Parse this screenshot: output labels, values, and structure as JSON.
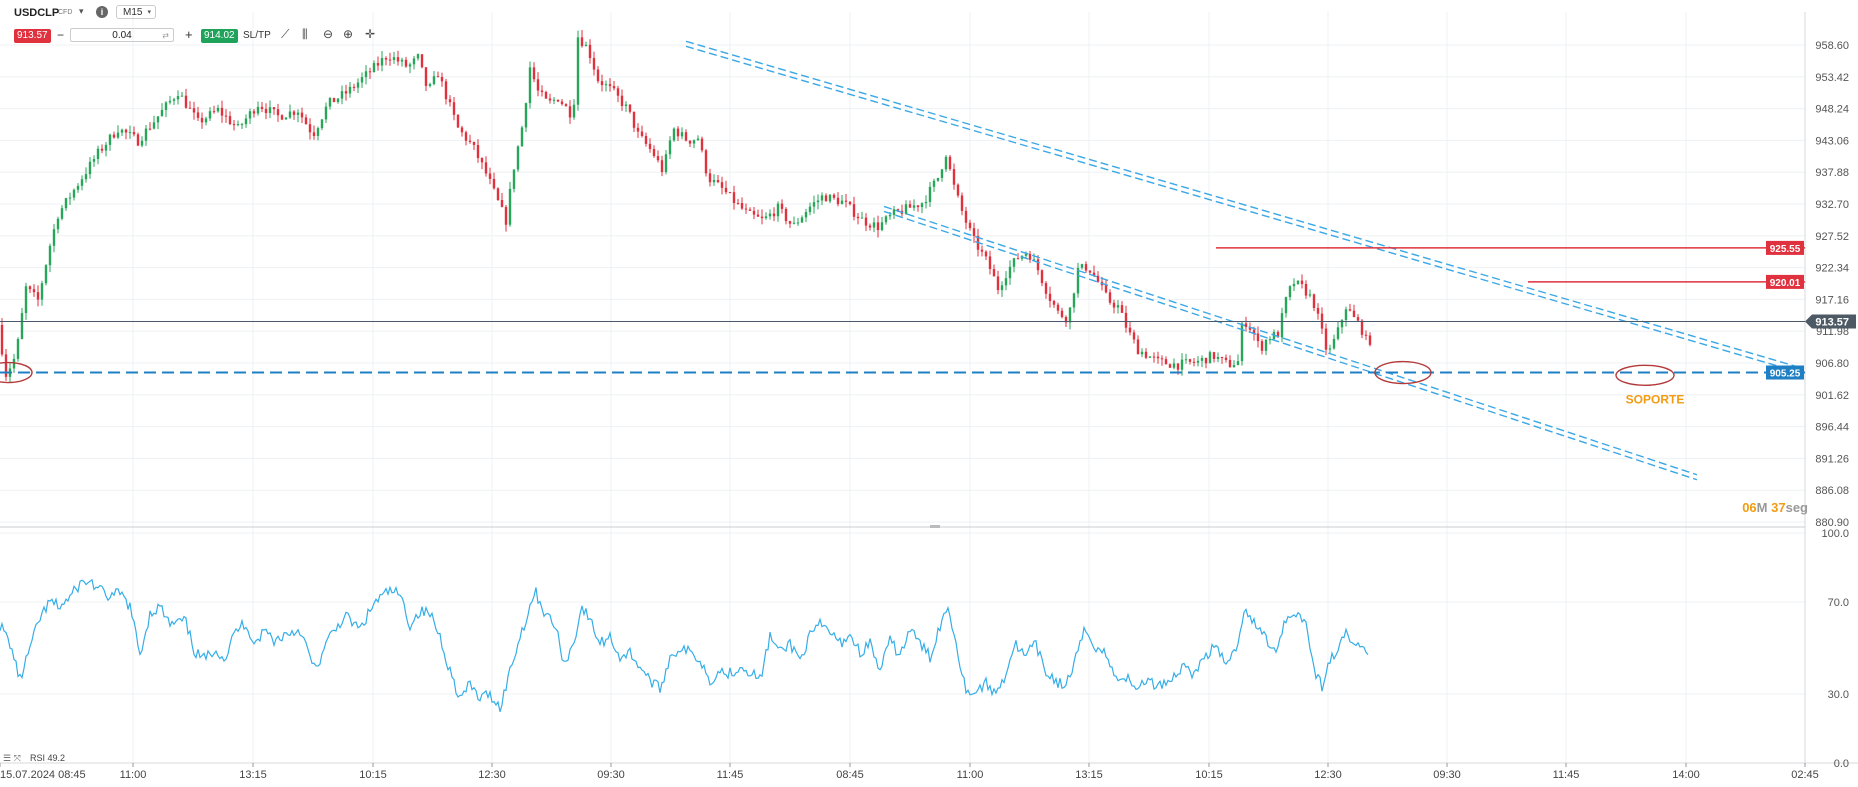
{
  "toolbar": {
    "symbol": "USDCLP",
    "symbol_tag": "CFD",
    "info_icon": "info-icon",
    "timeframe": "M15",
    "sell_price": "913.57",
    "quantity": "0.04",
    "buy_price": "914.02",
    "sltp_label": "SL/TP",
    "tools": [
      "line-chart-icon",
      "candles-icon",
      "zoom-out-icon",
      "zoom-in-icon",
      "crosshair-icon"
    ]
  },
  "colors": {
    "bull": "#27a65a",
    "bear": "#e0313e",
    "channel": "#3aa7e6",
    "support": "#1f7fc4",
    "resistance": "#e0313e",
    "current_line": "#4a5a6a",
    "rsi_line": "#35aee8",
    "annotation": "#f39c12",
    "circle": "#b33a3a"
  },
  "chart_data": [
    {
      "type": "candlestick",
      "symbol": "USDCLP",
      "timeframe": "M15",
      "ylim": [
        880.9,
        961.0
      ],
      "y_ticks": [
        "958.60",
        "953.42",
        "948.24",
        "943.06",
        "937.88",
        "932.70",
        "927.52",
        "922.34",
        "917.16",
        "911.98",
        "906.80",
        "901.62",
        "896.44",
        "891.26",
        "886.08",
        "880.90"
      ],
      "x_ticks": [
        "15.07.2024 08:45",
        "11:00",
        "13:15",
        "10:15",
        "12:30",
        "09:30",
        "11:45",
        "08:45",
        "11:00",
        "13:15",
        "10:15",
        "12:30",
        "09:30",
        "11:45",
        "14:00",
        "02:45"
      ],
      "current_price": "913.57",
      "price_levels": [
        {
          "label": "925.55",
          "value": 925.55,
          "kind": "resistance"
        },
        {
          "label": "920.01",
          "value": 920.01,
          "kind": "resistance"
        },
        {
          "label": "905.25",
          "value": 905.25,
          "kind": "support"
        }
      ],
      "annotation": "SOPORTE",
      "countdown": {
        "minutes": "06",
        "minutes_unit": "M",
        "seconds": "37",
        "seconds_unit": "seg"
      },
      "price_anchors": [
        [
          0,
          913.0
        ],
        [
          8,
          905.0
        ],
        [
          18,
          908.0
        ],
        [
          28,
          919.0
        ],
        [
          40,
          917.0
        ],
        [
          52,
          926.0
        ],
        [
          60,
          931.0
        ],
        [
          80,
          936.0
        ],
        [
          100,
          941.0
        ],
        [
          120,
          945.0
        ],
        [
          140,
          943.0
        ],
        [
          160,
          947.0
        ],
        [
          180,
          951.0
        ],
        [
          200,
          946.0
        ],
        [
          220,
          948.0
        ],
        [
          240,
          945.0
        ],
        [
          260,
          949.0
        ],
        [
          280,
          947.0
        ],
        [
          300,
          948.0
        ],
        [
          315,
          944.0
        ],
        [
          330,
          949.0
        ],
        [
          350,
          951.0
        ],
        [
          370,
          954.0
        ],
        [
          390,
          957.0
        ],
        [
          410,
          955.0
        ],
        [
          420,
          956.5
        ],
        [
          430,
          951.0
        ],
        [
          440,
          954.0
        ],
        [
          451,
          949.0
        ],
        [
          460,
          945.0
        ],
        [
          475,
          942.0
        ],
        [
          490,
          937.0
        ],
        [
          500,
          933.0
        ],
        [
          508,
          930.0
        ],
        [
          515,
          938.0
        ],
        [
          525,
          946.0
        ],
        [
          532,
          955.0
        ],
        [
          540,
          951.0
        ],
        [
          550,
          949.0
        ],
        [
          560,
          950.0
        ],
        [
          575,
          947.0
        ],
        [
          580,
          960.0
        ],
        [
          590,
          958.0
        ],
        [
          600,
          953.0
        ],
        [
          615,
          951.0
        ],
        [
          630,
          948.0
        ],
        [
          640,
          944.0
        ],
        [
          655,
          941.0
        ],
        [
          665,
          938.0
        ],
        [
          675,
          945.0
        ],
        [
          690,
          943.0
        ],
        [
          700,
          943.5
        ],
        [
          710,
          937.0
        ],
        [
          725,
          935.0
        ],
        [
          740,
          932.5
        ],
        [
          750,
          931.0
        ],
        [
          765,
          930.0
        ],
        [
          780,
          932.0
        ],
        [
          795,
          929.0
        ],
        [
          810,
          932.0
        ],
        [
          825,
          934.0
        ],
        [
          845,
          933.0
        ],
        [
          865,
          930.0
        ],
        [
          880,
          929.0
        ],
        [
          895,
          931.0
        ],
        [
          910,
          932.0
        ],
        [
          925,
          933.0
        ],
        [
          940,
          937.0
        ],
        [
          948,
          941.0
        ],
        [
          955,
          936.0
        ],
        [
          965,
          931.0
        ],
        [
          975,
          927.0
        ],
        [
          990,
          923.0
        ],
        [
          1000,
          919.0
        ],
        [
          1010,
          922.0
        ],
        [
          1020,
          924.0
        ],
        [
          1030,
          925.0
        ],
        [
          1040,
          922.0
        ],
        [
          1050,
          918.0
        ],
        [
          1060,
          915.0
        ],
        [
          1070,
          914.0
        ],
        [
          1080,
          922.0
        ],
        [
          1090,
          922.5
        ],
        [
          1100,
          920.0
        ],
        [
          1110,
          917.0
        ],
        [
          1120,
          916.0
        ],
        [
          1130,
          912.0
        ],
        [
          1140,
          909.0
        ],
        [
          1160,
          907.0
        ],
        [
          1180,
          906.5
        ],
        [
          1200,
          907.0
        ],
        [
          1215,
          908.0
        ],
        [
          1230,
          906.5
        ],
        [
          1240,
          907.0
        ],
        [
          1245,
          914.0
        ],
        [
          1255,
          912.0
        ],
        [
          1262,
          909.0
        ],
        [
          1270,
          911.0
        ],
        [
          1280,
          911.5
        ],
        [
          1288,
          917.0
        ],
        [
          1295,
          920.0
        ],
        [
          1305,
          919.0
        ],
        [
          1315,
          917.0
        ],
        [
          1322,
          913.0
        ],
        [
          1330,
          908.0
        ],
        [
          1340,
          912.0
        ],
        [
          1348,
          916.0
        ],
        [
          1356,
          914.0
        ],
        [
          1362,
          913.0
        ],
        [
          1368,
          910.5
        ]
      ]
    },
    {
      "type": "line",
      "name": "RSI",
      "legend": "RSI 49.2",
      "ylim": [
        0,
        100
      ],
      "y_ticks": [
        "100.0",
        "70.0",
        "30.0",
        "0.0"
      ],
      "x_ticks": [
        "15.07.2024 08:45",
        "11:00",
        "13:15",
        "10:15",
        "12:30",
        "09:30",
        "11:45",
        "08:45",
        "11:00",
        "13:15",
        "10:15",
        "12:30",
        "09:30",
        "11:45",
        "14:00",
        "02:45"
      ],
      "anchors": [
        [
          0,
          60
        ],
        [
          10,
          52
        ],
        [
          20,
          36
        ],
        [
          30,
          50
        ],
        [
          40,
          63
        ],
        [
          50,
          70
        ],
        [
          60,
          68
        ],
        [
          70,
          72
        ],
        [
          80,
          78
        ],
        [
          90,
          79
        ],
        [
          100,
          75
        ],
        [
          110,
          72
        ],
        [
          120,
          74
        ],
        [
          130,
          68
        ],
        [
          140,
          47
        ],
        [
          150,
          65
        ],
        [
          160,
          68
        ],
        [
          170,
          60
        ],
        [
          185,
          62
        ],
        [
          195,
          48
        ],
        [
          205,
          45
        ],
        [
          215,
          50
        ],
        [
          225,
          45
        ],
        [
          235,
          57
        ],
        [
          245,
          61
        ],
        [
          255,
          52
        ],
        [
          265,
          58
        ],
        [
          275,
          53
        ],
        [
          285,
          56
        ],
        [
          300,
          58
        ],
        [
          315,
          40
        ],
        [
          330,
          55
        ],
        [
          345,
          64
        ],
        [
          360,
          58
        ],
        [
          375,
          70
        ],
        [
          390,
          75
        ],
        [
          400,
          73
        ],
        [
          410,
          60
        ],
        [
          420,
          66
        ],
        [
          430,
          65
        ],
        [
          440,
          55
        ],
        [
          450,
          40
        ],
        [
          460,
          28
        ],
        [
          470,
          34
        ],
        [
          480,
          28
        ],
        [
          490,
          30
        ],
        [
          500,
          24
        ],
        [
          510,
          40
        ],
        [
          520,
          55
        ],
        [
          530,
          68
        ],
        [
          535,
          75
        ],
        [
          545,
          65
        ],
        [
          555,
          60
        ],
        [
          565,
          42
        ],
        [
          575,
          55
        ],
        [
          582,
          68
        ],
        [
          590,
          62
        ],
        [
          600,
          52
        ],
        [
          610,
          55
        ],
        [
          620,
          46
        ],
        [
          630,
          48
        ],
        [
          640,
          42
        ],
        [
          650,
          36
        ],
        [
          660,
          32
        ],
        [
          670,
          46
        ],
        [
          680,
          50
        ],
        [
          690,
          48
        ],
        [
          700,
          45
        ],
        [
          710,
          36
        ],
        [
          720,
          40
        ],
        [
          730,
          39
        ],
        [
          740,
          42
        ],
        [
          750,
          40
        ],
        [
          760,
          36
        ],
        [
          770,
          55
        ],
        [
          780,
          48
        ],
        [
          790,
          52
        ],
        [
          800,
          45
        ],
        [
          810,
          55
        ],
        [
          820,
          60
        ],
        [
          830,
          57
        ],
        [
          840,
          52
        ],
        [
          850,
          56
        ],
        [
          860,
          48
        ],
        [
          870,
          52
        ],
        [
          880,
          40
        ],
        [
          890,
          53
        ],
        [
          900,
          47
        ],
        [
          910,
          58
        ],
        [
          920,
          52
        ],
        [
          930,
          46
        ],
        [
          940,
          60
        ],
        [
          948,
          68
        ],
        [
          955,
          55
        ],
        [
          965,
          33
        ],
        [
          975,
          30
        ],
        [
          985,
          35
        ],
        [
          995,
          30
        ],
        [
          1005,
          38
        ],
        [
          1015,
          52
        ],
        [
          1025,
          46
        ],
        [
          1035,
          52
        ],
        [
          1045,
          40
        ],
        [
          1055,
          36
        ],
        [
          1065,
          33
        ],
        [
          1075,
          44
        ],
        [
          1085,
          58
        ],
        [
          1095,
          51
        ],
        [
          1105,
          48
        ],
        [
          1115,
          37
        ],
        [
          1125,
          38
        ],
        [
          1135,
          32
        ],
        [
          1145,
          36
        ],
        [
          1155,
          34
        ],
        [
          1165,
          35
        ],
        [
          1175,
          38
        ],
        [
          1185,
          43
        ],
        [
          1195,
          38
        ],
        [
          1205,
          47
        ],
        [
          1215,
          50
        ],
        [
          1225,
          44
        ],
        [
          1235,
          48
        ],
        [
          1245,
          68
        ],
        [
          1255,
          60
        ],
        [
          1265,
          55
        ],
        [
          1275,
          48
        ],
        [
          1285,
          62
        ],
        [
          1295,
          66
        ],
        [
          1305,
          62
        ],
        [
          1315,
          40
        ],
        [
          1322,
          33
        ],
        [
          1330,
          45
        ],
        [
          1340,
          50
        ],
        [
          1345,
          58
        ],
        [
          1352,
          52
        ],
        [
          1360,
          50
        ],
        [
          1368,
          49
        ]
      ]
    }
  ]
}
